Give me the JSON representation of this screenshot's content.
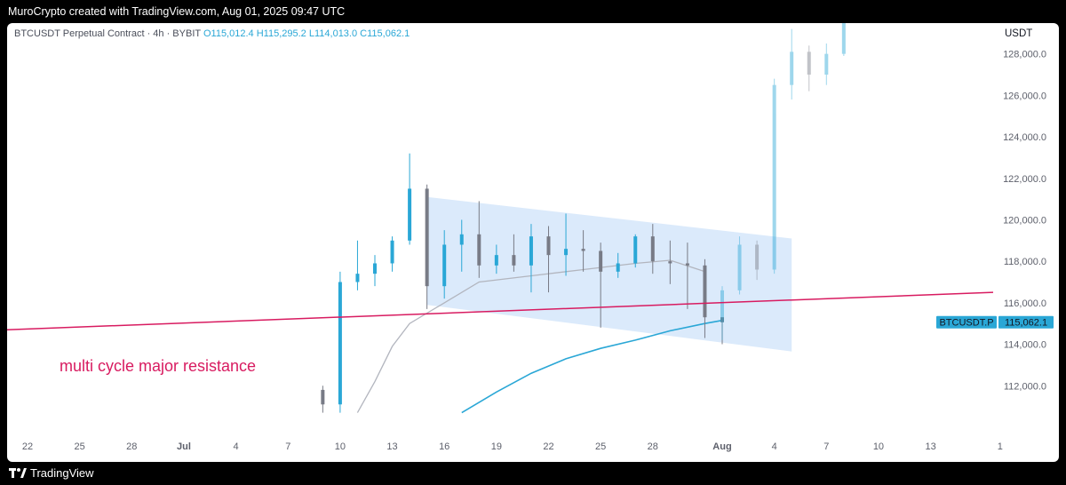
{
  "header": {
    "caption": "MuroCrypto created with TradingView.com, Aug 01, 2025 09:47 UTC"
  },
  "symbol_info": {
    "name": "BTCUSDT Perpetual Contract · 4h · BYBIT",
    "open": "O115,012.4",
    "high": "H115,295.2",
    "low": "L114,013.0",
    "close": "C115,062.1"
  },
  "currency": "USDT",
  "footer": {
    "brand": "TradingView"
  },
  "chart_data": {
    "type": "candlestick",
    "timeframe": "4h",
    "x_tick_labels": [
      "22",
      "25",
      "28",
      "Jul",
      "4",
      "7",
      "10",
      "13",
      "16",
      "19",
      "22",
      "25",
      "28",
      "Aug",
      "4",
      "7",
      "10",
      "13",
      "1"
    ],
    "y_tick_labels": [
      "112,000.0",
      "114,000.0",
      "116,000.0",
      "118,000.0",
      "120,000.0",
      "122,000.0",
      "124,000.0",
      "126,000.0",
      "128,000.0"
    ],
    "y_range": [
      110700,
      129900
    ],
    "grid": false,
    "last_price": {
      "symbol_label": "BTCUSDT.P",
      "value": "115,062.1",
      "color": "#2aa7d6"
    },
    "candles": [
      {
        "date": "2025-07-09",
        "o": 111800,
        "h": 112000,
        "l": 110700,
        "c": 111100
      },
      {
        "date": "2025-07-10",
        "o": 111100,
        "h": 117500,
        "l": 110700,
        "c": 117000
      },
      {
        "date": "2025-07-11",
        "o": 117000,
        "h": 119000,
        "l": 116600,
        "c": 117400
      },
      {
        "date": "2025-07-12",
        "o": 117400,
        "h": 118300,
        "l": 116800,
        "c": 117900
      },
      {
        "date": "2025-07-13",
        "o": 117900,
        "h": 119200,
        "l": 117500,
        "c": 119000
      },
      {
        "date": "2025-07-14",
        "o": 119000,
        "h": 123200,
        "l": 118800,
        "c": 121500
      },
      {
        "date": "2025-07-15",
        "o": 121500,
        "h": 121700,
        "l": 115700,
        "c": 116800
      },
      {
        "date": "2025-07-16",
        "o": 116800,
        "h": 119500,
        "l": 116200,
        "c": 118800
      },
      {
        "date": "2025-07-17",
        "o": 118800,
        "h": 120000,
        "l": 117500,
        "c": 119300
      },
      {
        "date": "2025-07-18",
        "o": 119300,
        "h": 120900,
        "l": 117200,
        "c": 117800
      },
      {
        "date": "2025-07-19",
        "o": 117800,
        "h": 118800,
        "l": 117400,
        "c": 118300
      },
      {
        "date": "2025-07-20",
        "o": 118300,
        "h": 119300,
        "l": 117500,
        "c": 117800
      },
      {
        "date": "2025-07-21",
        "o": 117800,
        "h": 119800,
        "l": 116500,
        "c": 119200
      },
      {
        "date": "2025-07-22",
        "o": 119200,
        "h": 119700,
        "l": 116500,
        "c": 118300
      },
      {
        "date": "2025-07-23",
        "o": 118300,
        "h": 120300,
        "l": 117300,
        "c": 118600
      },
      {
        "date": "2025-07-24",
        "o": 118600,
        "h": 119500,
        "l": 117500,
        "c": 118500
      },
      {
        "date": "2025-07-25",
        "o": 118500,
        "h": 118900,
        "l": 114800,
        "c": 117500
      },
      {
        "date": "2025-07-26",
        "o": 117500,
        "h": 118400,
        "l": 117200,
        "c": 117900
      },
      {
        "date": "2025-07-27",
        "o": 117900,
        "h": 119300,
        "l": 117700,
        "c": 119200
      },
      {
        "date": "2025-07-28",
        "o": 119200,
        "h": 119800,
        "l": 117400,
        "c": 118000
      },
      {
        "date": "2025-07-29",
        "o": 118000,
        "h": 119000,
        "l": 116900,
        "c": 117900
      },
      {
        "date": "2025-07-30",
        "o": 117900,
        "h": 118900,
        "l": 115700,
        "c": 117800
      },
      {
        "date": "2025-07-31",
        "o": 117800,
        "h": 118100,
        "l": 114300,
        "c": 115300
      },
      {
        "date": "2025-08-01",
        "o": 115300,
        "h": 115300,
        "l": 114000,
        "c": 115062
      }
    ],
    "projection": [
      {
        "date": "2025-08-01",
        "o": 115062,
        "h": 116800,
        "l": 114200,
        "c": 116600
      },
      {
        "date": "2025-08-02",
        "o": 116600,
        "h": 119200,
        "l": 116400,
        "c": 118800
      },
      {
        "date": "2025-08-03",
        "o": 118800,
        "h": 119000,
        "l": 117100,
        "c": 117600
      },
      {
        "date": "2025-08-04",
        "o": 117600,
        "h": 126800,
        "l": 117400,
        "c": 126500
      },
      {
        "date": "2025-08-05",
        "o": 126500,
        "h": 129200,
        "l": 125800,
        "c": 128100
      },
      {
        "date": "2025-08-06",
        "o": 128100,
        "h": 128400,
        "l": 126200,
        "c": 127000
      },
      {
        "date": "2025-08-07",
        "o": 127000,
        "h": 128500,
        "l": 126500,
        "c": 128000
      },
      {
        "date": "2025-08-08",
        "o": 128000,
        "h": 129900,
        "l": 127900,
        "c": 129700
      }
    ],
    "moving_averages": [
      {
        "color": "#b2b5be",
        "points": [
          {
            "date": "2025-07-11",
            "v": 110700
          },
          {
            "date": "2025-07-12",
            "v": 112200
          },
          {
            "date": "2025-07-13",
            "v": 113900
          },
          {
            "date": "2025-07-14",
            "v": 115000
          },
          {
            "date": "2025-07-15",
            "v": 115500
          },
          {
            "date": "2025-07-16",
            "v": 116000
          },
          {
            "date": "2025-07-18",
            "v": 117000
          },
          {
            "date": "2025-07-21",
            "v": 117300
          },
          {
            "date": "2025-07-24",
            "v": 117600
          },
          {
            "date": "2025-07-27",
            "v": 117900
          },
          {
            "date": "2025-07-29",
            "v": 118050
          },
          {
            "date": "2025-07-31",
            "v": 117500
          }
        ]
      },
      {
        "color": "#2aa7d6",
        "points": [
          {
            "date": "2025-07-17",
            "v": 110700
          },
          {
            "date": "2025-07-19",
            "v": 111700
          },
          {
            "date": "2025-07-21",
            "v": 112600
          },
          {
            "date": "2025-07-23",
            "v": 113300
          },
          {
            "date": "2025-07-25",
            "v": 113800
          },
          {
            "date": "2025-07-27",
            "v": 114200
          },
          {
            "date": "2025-07-29",
            "v": 114650
          },
          {
            "date": "2025-07-31",
            "v": 115000
          },
          {
            "date": "2025-08-01",
            "v": 115150
          }
        ]
      }
    ],
    "annotations": {
      "resistance": {
        "label": "multi cycle major resistance",
        "color": "#d81b60",
        "start": {
          "date": "2025-06-18",
          "v": 114700
        },
        "end": {
          "date": "2025-08-14",
          "v": 116500
        }
      },
      "channel": {
        "color": "#cfe3fa",
        "corners": [
          {
            "date": "2025-07-15",
            "v": 121100
          },
          {
            "date": "2025-08-05",
            "v": 119100
          },
          {
            "date": "2025-08-05",
            "v": 113650
          },
          {
            "date": "2025-07-15",
            "v": 115900
          }
        ]
      }
    }
  }
}
